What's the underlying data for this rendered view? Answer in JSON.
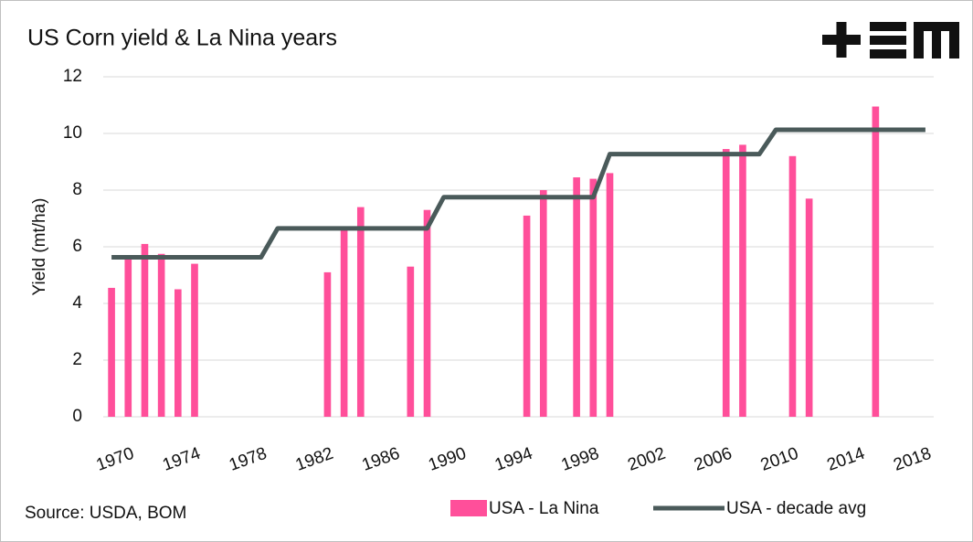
{
  "chart_data": {
    "type": "bar",
    "title": "US Corn yield & La Nina years",
    "y_label": "Yield (mt/ha)",
    "source": "Source: USDA, BOM",
    "x": [
      1970,
      1971,
      1972,
      1973,
      1974,
      1975,
      1976,
      1977,
      1978,
      1979,
      1980,
      1981,
      1982,
      1983,
      1984,
      1985,
      1986,
      1987,
      1988,
      1989,
      1990,
      1991,
      1992,
      1993,
      1994,
      1995,
      1996,
      1997,
      1998,
      1999,
      2000,
      2001,
      2002,
      2003,
      2004,
      2005,
      2006,
      2007,
      2008,
      2009,
      2010,
      2011,
      2012,
      2013,
      2014,
      2015,
      2016,
      2017,
      2018,
      2019
    ],
    "xlim": [
      1969.5,
      2019.5
    ],
    "xticks": [
      1970,
      1974,
      1978,
      1982,
      1986,
      1990,
      1994,
      1998,
      2002,
      2006,
      2010,
      2014,
      2018
    ],
    "ylim": [
      0,
      12
    ],
    "yticks": [
      0,
      2,
      4,
      6,
      8,
      10,
      12
    ],
    "grid": true,
    "series": [
      {
        "name": "USA - La Nina",
        "type": "bar",
        "color": "#ff4f9a",
        "values": [
          4.55,
          5.6,
          6.1,
          5.75,
          4.5,
          5.4,
          null,
          null,
          null,
          null,
          null,
          null,
          null,
          5.1,
          6.65,
          7.4,
          null,
          null,
          5.3,
          7.3,
          null,
          null,
          null,
          null,
          null,
          7.1,
          8.0,
          null,
          8.45,
          8.4,
          8.6,
          null,
          null,
          null,
          null,
          null,
          null,
          9.45,
          9.6,
          null,
          null,
          9.2,
          7.7,
          null,
          null,
          null,
          10.95,
          null,
          null,
          null
        ]
      },
      {
        "name": "USA - decade avg",
        "type": "line",
        "color": "#4a5a5a",
        "values": [
          5.63,
          5.63,
          5.63,
          5.63,
          5.63,
          5.63,
          5.63,
          5.63,
          5.63,
          5.63,
          6.65,
          6.65,
          6.65,
          6.65,
          6.65,
          6.65,
          6.65,
          6.65,
          6.65,
          6.65,
          7.75,
          7.75,
          7.75,
          7.75,
          7.75,
          7.75,
          7.75,
          7.75,
          7.75,
          7.75,
          9.27,
          9.27,
          9.27,
          9.27,
          9.27,
          9.27,
          9.27,
          9.27,
          9.27,
          9.27,
          10.13,
          10.13,
          10.13,
          10.13,
          10.13,
          10.13,
          10.13,
          10.13,
          10.13,
          10.13
        ]
      }
    ]
  }
}
